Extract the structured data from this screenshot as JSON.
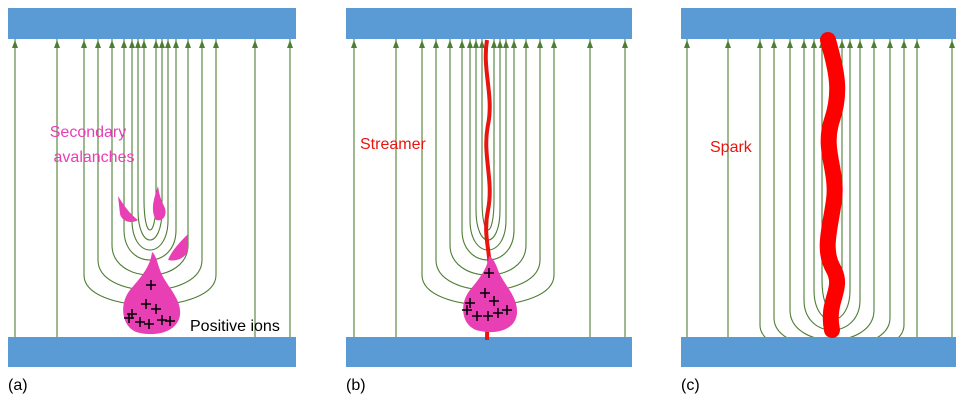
{
  "panels": [
    {
      "label": "(a)",
      "annotations": [
        "Secondary",
        "avalanches",
        "Positive ions"
      ]
    },
    {
      "label": "(b)",
      "annotations": [
        "Streamer"
      ]
    },
    {
      "label": "(c)",
      "annotations": [
        "Spark"
      ]
    }
  ]
}
